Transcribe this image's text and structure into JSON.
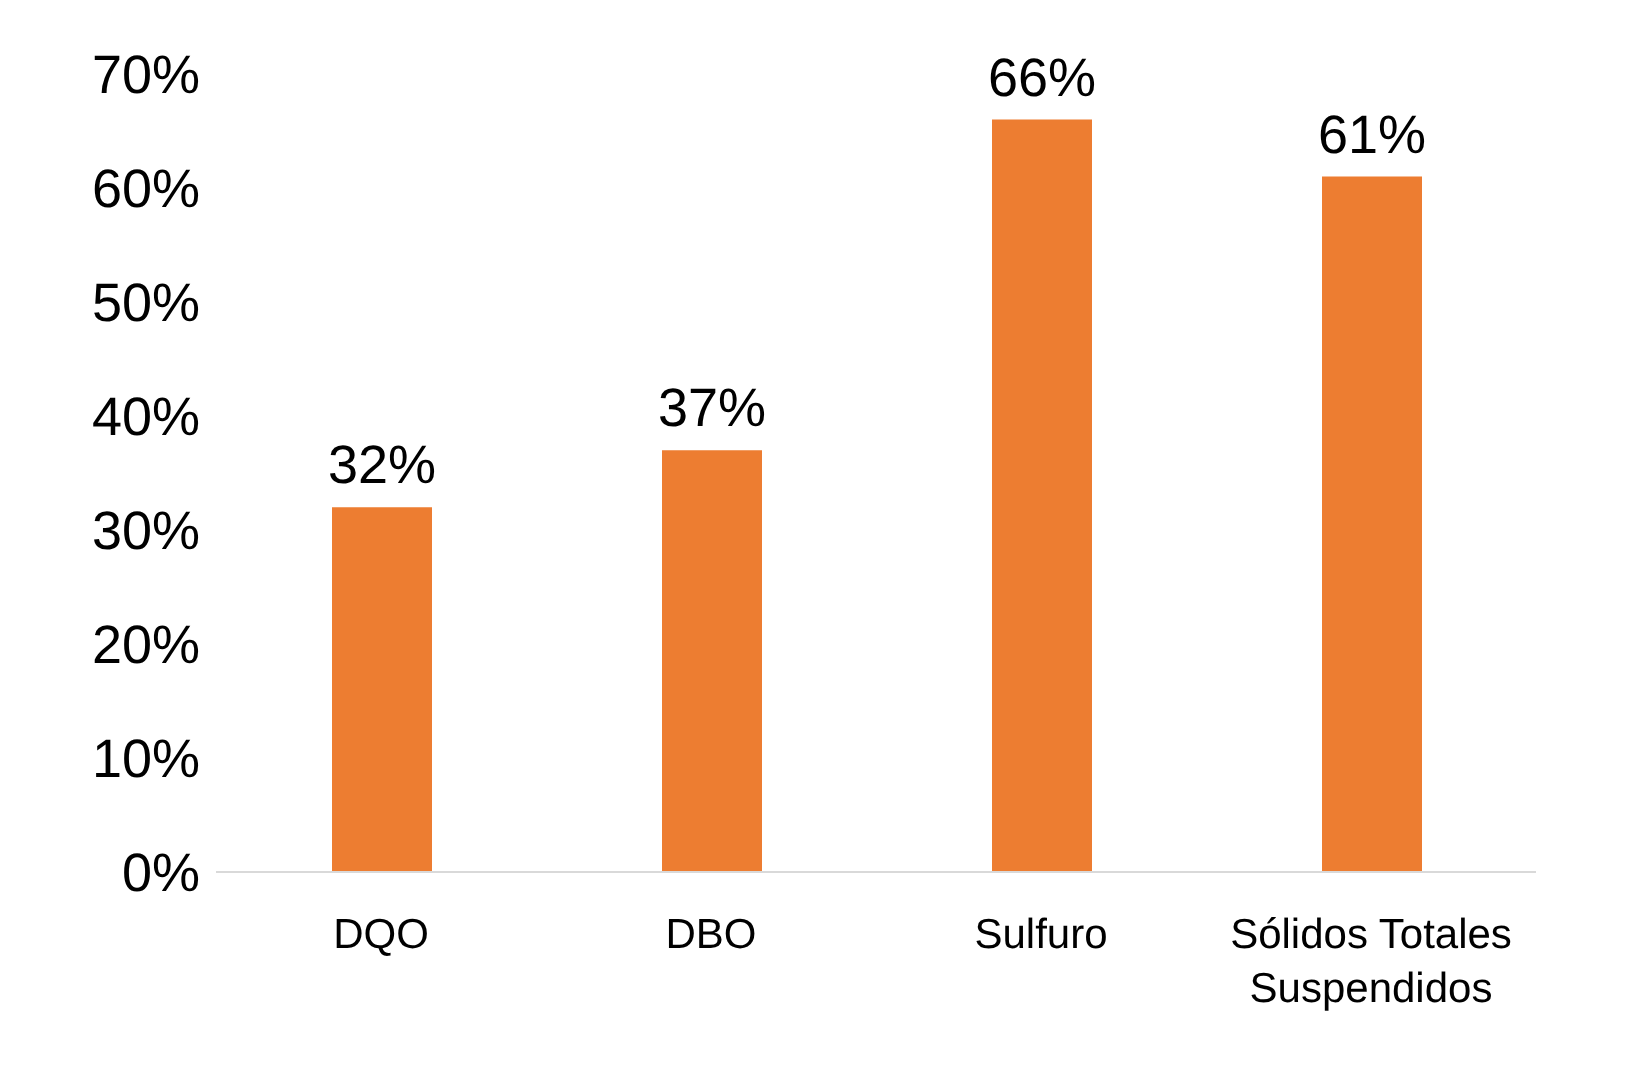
{
  "chart_data": {
    "type": "bar",
    "categories": [
      "DQO",
      "DBO",
      "Sulfuro",
      "Sólidos Totales Suspendidos"
    ],
    "series": [
      {
        "color": "#ed7d31",
        "values": [
          32,
          37,
          66,
          61
        ],
        "value_labels": [
          "32%",
          "37%",
          "66%",
          "61%"
        ]
      }
    ],
    "ylim": [
      0,
      70
    ],
    "yticks": [
      {
        "value": 0,
        "label": "0%"
      },
      {
        "value": 10,
        "label": "10%"
      },
      {
        "value": 20,
        "label": "20%"
      },
      {
        "value": 30,
        "label": "30%"
      },
      {
        "value": 40,
        "label": "40%"
      },
      {
        "value": 50,
        "label": "50%"
      },
      {
        "value": 60,
        "label": "60%"
      },
      {
        "value": 70,
        "label": "70%"
      }
    ],
    "grid": false,
    "legend": false
  }
}
